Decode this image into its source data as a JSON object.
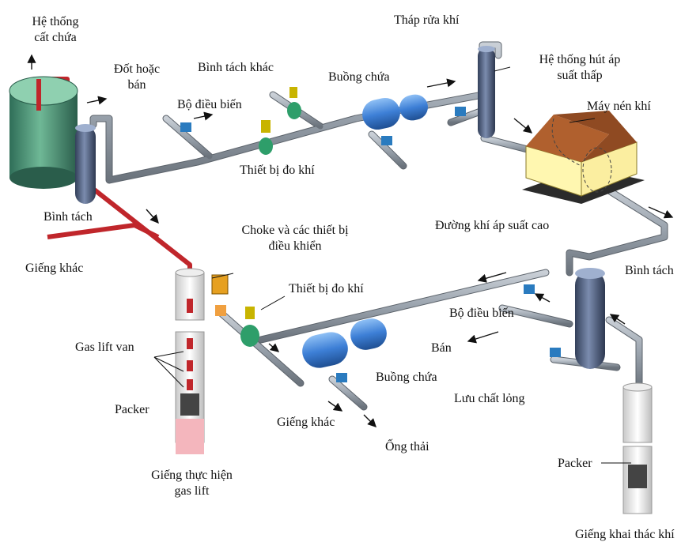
{
  "labels": {
    "storage_system": "Hệ thống\ncất chứa",
    "flare_or_sale": "Đốt hoặc\nbán",
    "other_separator": "Bình tách khác",
    "regulator_top": "Bộ điều biến",
    "meter_top": "Thiết bị đo khí",
    "receiver_top": "Buồng chứa",
    "scrubber_tower": "Tháp rửa khí",
    "low_pressure_suction": "Hệ thống hút áp\nsuất thấp",
    "compressor": "Máy nén khí",
    "separator_left": "Bình tách",
    "other_well_left": "Giếng khác",
    "choke_controls": "Choke và các thiết bị\nđiều khiển",
    "meter_bottom": "Thiết bị đo khí",
    "high_pressure_line": "Đường khí áp suất cao",
    "separator_right": "Bình tách",
    "regulator_right": "Bộ điều biến",
    "sale": "Bán",
    "liquid": "Lưu chất lỏng",
    "receiver_bottom": "Buồng chứa",
    "other_well_bottom": "Giếng khác",
    "drain_pipe": "Ống thải",
    "gas_lift_valve": "Gas lift van",
    "packer_left": "Packer",
    "gas_lift_well": "Giếng thực hiện\ngas lift",
    "packer_right": "Packer",
    "producing_well": "Giếng khai thác khí"
  },
  "colors": {
    "pipe": "#9aa3ad",
    "pipe_dark": "#6b737c",
    "injection_line": "#c0262b",
    "tank": "#3f8a6e",
    "vessel": "#4a5b7c",
    "receiver": "#3d7fd6",
    "roof": "#a0522d",
    "building": "#fff7b0",
    "meter": "#2e9e6a",
    "valve": "#2a7bbf"
  },
  "icons": [
    "storage-tank-icon",
    "separator-vessel-icon",
    "scrubber-tower-icon",
    "compressor-house-icon",
    "receiver-vessel-icon",
    "meter-icon",
    "valve-icon",
    "choke-icon",
    "well-casing-icon",
    "arrow-icon"
  ]
}
